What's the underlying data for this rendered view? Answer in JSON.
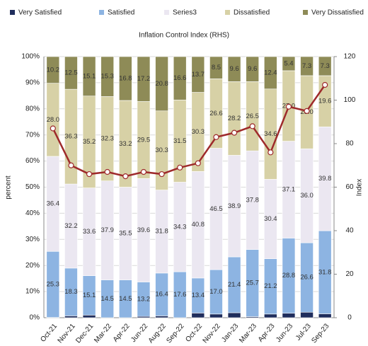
{
  "chart_data": {
    "type": "bar",
    "stacked": true,
    "categories": [
      "Oct-21",
      "Nov-21",
      "Dec-21",
      "Mar-22",
      "Apr-22",
      "Jun-22",
      "Aug-22",
      "Sep-22",
      "Oct-22",
      "Nov-22",
      "Jan-23",
      "Mar-23",
      "Apr-23",
      "Jun-23",
      "Jul-23",
      "Sep-23"
    ],
    "series": [
      {
        "name": "Very Satisfied",
        "color": "#1f2d5c",
        "values": [
          0.1,
          0.7,
          1.0,
          0,
          0,
          0.5,
          0.7,
          0,
          1.8,
          1.4,
          1.9,
          0.4,
          1.4,
          1.7,
          2.1,
          1.5
        ]
      },
      {
        "name": "Satisfied",
        "color": "#8db4e2",
        "values": [
          25.3,
          18.3,
          15.1,
          14.5,
          14.5,
          13.2,
          16.4,
          17.6,
          13.4,
          17.0,
          21.4,
          25.7,
          21.2,
          28.8,
          26.6,
          31.8
        ],
        "value_labels": [
          "25.3",
          "18.3",
          "15.1",
          "14.5",
          "14.5",
          "13.2",
          "16.4",
          "17.6",
          "13.4",
          "17.0",
          "21.4",
          "25.7",
          "21.2",
          "28.8",
          "26.6",
          "31.8"
        ]
      },
      {
        "name": "Series3",
        "color": "#ebe7f1",
        "values": [
          36.4,
          32.2,
          33.6,
          37.9,
          35.5,
          39.6,
          31.8,
          34.3,
          40.8,
          46.5,
          38.9,
          37.8,
          30.4,
          37.1,
          36.0,
          39.8
        ],
        "value_labels": [
          "36.4",
          "32.2",
          "33.6",
          "37.9",
          "35.5",
          "39.6",
          "31.8",
          "34.3",
          "40.8",
          "46.5",
          "38.9",
          "37.8",
          "30.4",
          "37.1",
          "36.0",
          "39.8"
        ]
      },
      {
        "name": "Dissatisfied",
        "color": "#d7d1a6",
        "values": [
          28.0,
          36.3,
          35.2,
          32.3,
          33.2,
          29.5,
          30.3,
          31.5,
          30.3,
          26.6,
          28.2,
          26.5,
          34.6,
          27.0,
          28.0,
          19.6
        ],
        "value_labels": [
          "28.0",
          "36.3",
          "35.2",
          "32.3",
          "33.2",
          "29.5",
          "30.3",
          "31.5",
          "30.3",
          "26.6",
          "28.2",
          "26.5",
          "34.6",
          "27.0",
          "28.0",
          "19.6"
        ]
      },
      {
        "name": "Very Dissatisfied",
        "color": "#8e8b57",
        "values": [
          10.2,
          12.5,
          15.1,
          15.3,
          16.8,
          17.2,
          20.8,
          16.6,
          13.7,
          8.5,
          9.6,
          9.6,
          12.4,
          5.4,
          7.3,
          7.3
        ],
        "value_labels": [
          "10.2",
          "12.5",
          "15.1",
          "15.3",
          "16.8",
          "17.2",
          "20.8",
          "16.6",
          "13.7",
          "8.5",
          "9.6",
          "9.6",
          "12.4",
          "5.4",
          "7.3",
          "7.3"
        ]
      },
      {
        "name": "Inflation Control Index (RHS)",
        "type": "line",
        "axis": "y2",
        "color": "#9e2a2b",
        "values": [
          87,
          70,
          66,
          67,
          65,
          67,
          66,
          69,
          71,
          83,
          85,
          88,
          76,
          97,
          95,
          107
        ]
      }
    ],
    "ylabel": "percent",
    "y2label": "Index",
    "ylim": [
      0,
      100
    ],
    "yticks": [
      {
        "value": 0,
        "label": "0%"
      },
      {
        "value": 10,
        "label": "10%"
      },
      {
        "value": 20,
        "label": "20%"
      },
      {
        "value": 30,
        "label": "30%"
      },
      {
        "value": 40,
        "label": "40%"
      },
      {
        "value": 50,
        "label": "50%"
      },
      {
        "value": 60,
        "label": "60%"
      },
      {
        "value": 70,
        "label": "70%"
      },
      {
        "value": 80,
        "label": "80%"
      },
      {
        "value": 90,
        "label": "90%"
      },
      {
        "value": 100,
        "label": "100%"
      }
    ],
    "y2lim": [
      0,
      120
    ],
    "y2ticks": [
      0,
      20,
      40,
      60,
      80,
      100,
      120
    ],
    "grid": true,
    "legend": "top"
  }
}
